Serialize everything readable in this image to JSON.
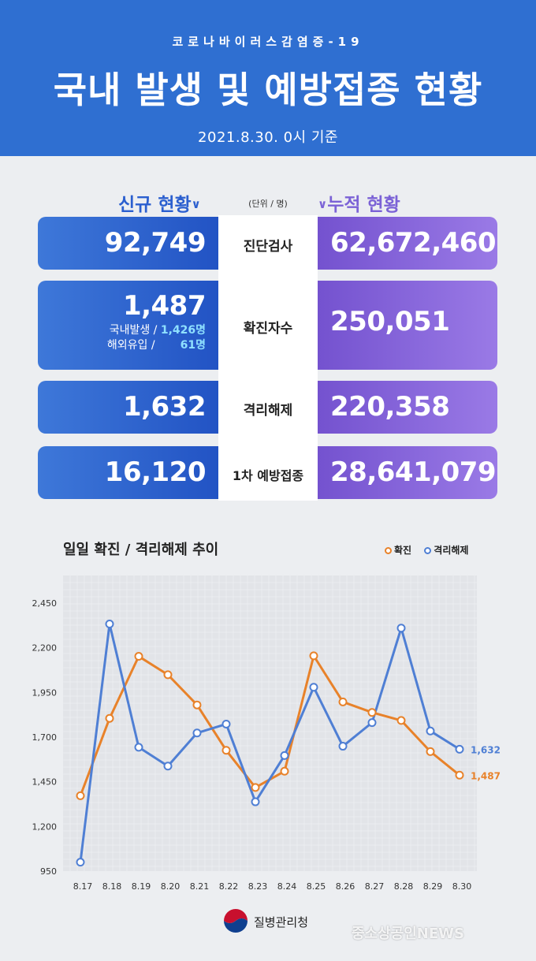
{
  "header": {
    "subtitle": "코로나바이러스감염증-19",
    "title": "국내 발생 및 예방접종 현황",
    "date": "2021.8.30. 0시 기준"
  },
  "sections": {
    "new_label": "신규 현황",
    "unit": "(단위 / 명)",
    "cumulative_label": "누적 현황"
  },
  "rows": [
    {
      "label": "진단검사",
      "new": "92,749",
      "cumulative": "62,672,460"
    },
    {
      "label": "확진자수",
      "new": "1,487",
      "cumulative": "250,051",
      "domestic_label": "국내발생 /",
      "domestic_value": "1,426명",
      "overseas_label": "해외유입 /",
      "overseas_value": "61명"
    },
    {
      "label": "격리해제",
      "new": "1,632",
      "cumulative": "220,358"
    },
    {
      "label": "1차 예방접종",
      "new": "16,120",
      "cumulative": "28,641,079"
    }
  ],
  "chart_data": {
    "type": "line",
    "title": "일일 확진 / 격리해제 추이",
    "categories": [
      "8.17",
      "8.18",
      "8.19",
      "8.20",
      "8.21",
      "8.22",
      "8.23",
      "8.24",
      "8.25",
      "8.26",
      "8.27",
      "8.28",
      "8.29",
      "8.30"
    ],
    "ylim": [
      950,
      2450
    ],
    "yticks": [
      950,
      1200,
      1450,
      1700,
      1950,
      2200,
      2450
    ],
    "ytick_labels": [
      "950",
      "1,200",
      "1,450",
      "1,700",
      "1,950",
      "2,200",
      "2,450"
    ],
    "legend_position": "top-right",
    "series": [
      {
        "name": "확진",
        "color": "#e8822a",
        "values": [
          1372,
          1805,
          2152,
          2049,
          1880,
          1626,
          1418,
          1509,
          2155,
          1897,
          1838,
          1793,
          1619,
          1487
        ],
        "end_label": "1,487"
      },
      {
        "name": "격리해제",
        "color": "#4f7fd4",
        "values": [
          1000,
          2333,
          1643,
          1538,
          1723,
          1773,
          1338,
          1597,
          1979,
          1649,
          1781,
          2310,
          1734,
          1632
        ],
        "end_label": "1,632"
      }
    ]
  },
  "footer": {
    "agency": "질병관리청",
    "watermark": "중소상공인NEWS"
  }
}
